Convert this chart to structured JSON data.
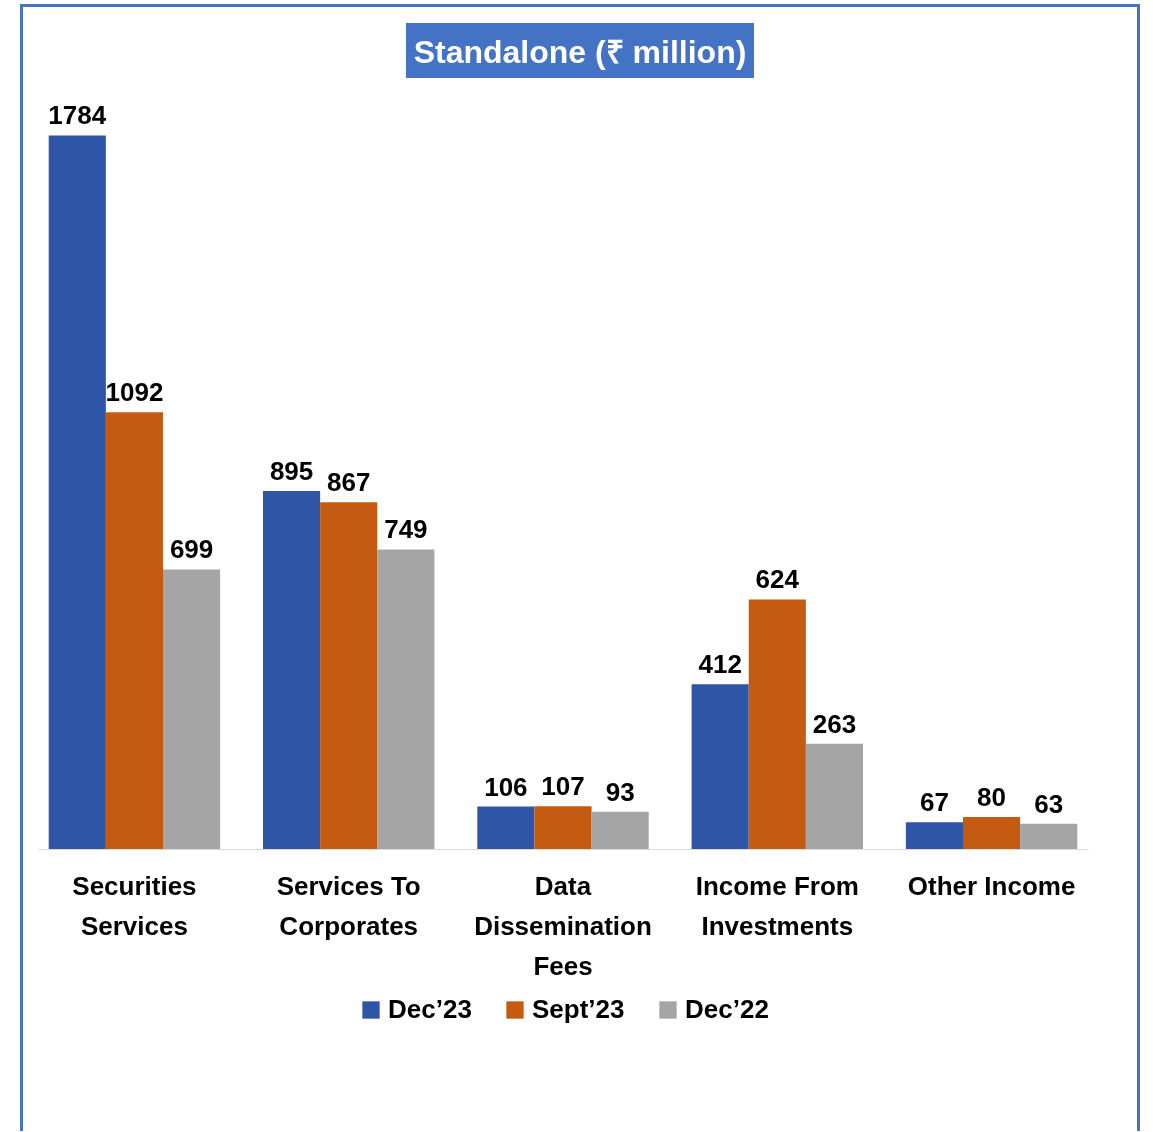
{
  "chart_data": {
    "type": "bar",
    "title": "Standalone (₹ million)",
    "categories": [
      "Securities Services",
      "Services To Corporates",
      "Data Dissemination Fees",
      "Income From Investments",
      "Other Income"
    ],
    "series": [
      {
        "name": "Dec’23",
        "color": "#2f56a6",
        "values": [
          1784,
          895,
          106,
          412,
          67
        ]
      },
      {
        "name": "Sept’23",
        "color": "#c55a11",
        "values": [
          1092,
          867,
          107,
          624,
          80
        ]
      },
      {
        "name": "Dec’22",
        "color": "#a5a5a5",
        "values": [
          699,
          749,
          93,
          263,
          63
        ]
      }
    ],
    "data_labels": true,
    "legend": "bottom"
  }
}
